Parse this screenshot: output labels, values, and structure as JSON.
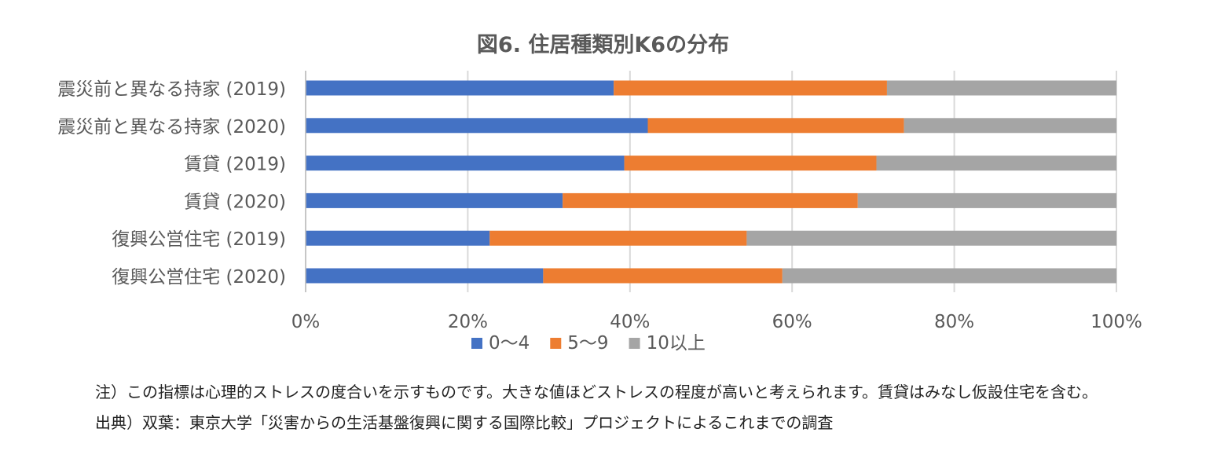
{
  "chart_data": {
    "type": "bar",
    "orientation": "horizontal",
    "stacked": "percent",
    "title": "図6. 住居種類別K6の分布",
    "categories": [
      "震災前と異なる持家 (2019)",
      "震災前と異なる持家 (2020)",
      "賃貸 (2019)",
      "賃貸 (2020)",
      "復興公営住宅 (2019)",
      "復興公営住宅 (2020)"
    ],
    "series": [
      {
        "name": "0～4",
        "color": "#4472C4",
        "values": [
          38.0,
          42.2,
          39.3,
          31.7,
          22.7,
          29.3
        ]
      },
      {
        "name": "5～9",
        "color": "#ED7D31",
        "values": [
          33.7,
          31.6,
          31.1,
          36.4,
          31.7,
          29.5
        ]
      },
      {
        "name": "10以上",
        "color": "#A5A5A5",
        "values": [
          28.3,
          26.2,
          29.6,
          31.9,
          45.6,
          41.2
        ]
      }
    ],
    "xlim": [
      0,
      100
    ],
    "x_ticks": [
      "0%",
      "20%",
      "40%",
      "60%",
      "80%",
      "100%"
    ],
    "xlabel": "",
    "ylabel": "",
    "grid": "vertical",
    "legend_position": "bottom"
  },
  "notes": {
    "note": "注）この指標は心理的ストレスの度合いを示すものです。大きな値ほどストレスの程度が高いと考えられます。賃貸はみなし仮設住宅を含む。",
    "source": "出典）双葉：東京大学「災害からの生活基盤復興に関する国際比較」プロジェクトによるこれまでの調査"
  }
}
